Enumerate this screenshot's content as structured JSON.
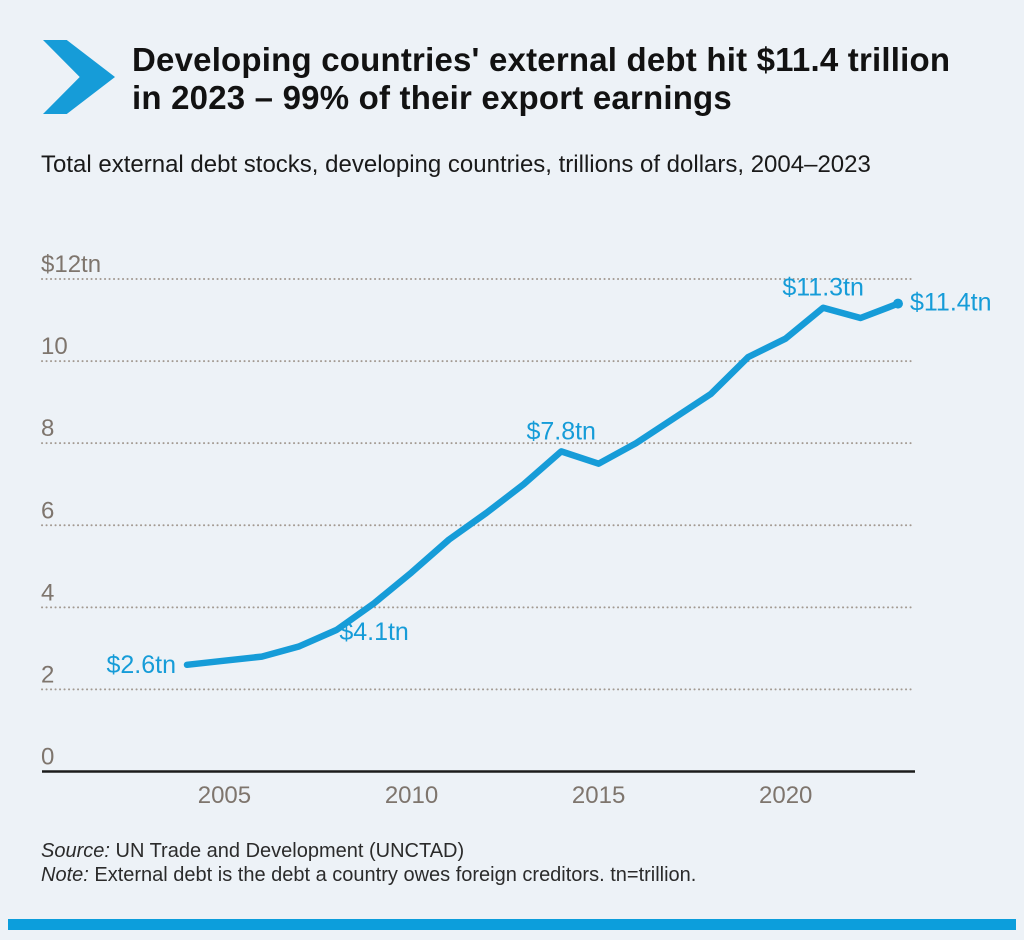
{
  "header": {
    "title": "Developing countries' external debt hit $11.4 trillion in 2023 – 99% of their export earnings",
    "subtitle": "Total external debt stocks, developing countries, trillions of dollars, 2004–2023"
  },
  "footer": {
    "source_label": "Source:",
    "source_text": "UN Trade and Development (UNCTAD)",
    "note_label": "Note:",
    "note_text": "External debt is the debt a country owes foreign creditors. tn=trillion."
  },
  "colors": {
    "accent": "#169cd8",
    "axis": "#1c1c1c",
    "grid": "#a39a92",
    "tick_text": "#7e756d"
  },
  "chart_data": {
    "type": "line",
    "title": "Total external debt stocks, developing countries, trillions of dollars, 2004–2023",
    "xlabel": "",
    "ylabel": "trillions of dollars",
    "xlim": [
      2004,
      2023
    ],
    "ylim": [
      0,
      12.6
    ],
    "grid": "horizontal-dotted",
    "legend": "none",
    "x": [
      2004,
      2005,
      2006,
      2007,
      2008,
      2009,
      2010,
      2011,
      2012,
      2013,
      2014,
      2015,
      2016,
      2017,
      2018,
      2019,
      2020,
      2021,
      2022,
      2023
    ],
    "series": [
      {
        "name": "Total external debt stocks ($tn)",
        "values": [
          2.6,
          2.7,
          2.8,
          3.05,
          3.45,
          4.1,
          4.85,
          5.65,
          6.3,
          7.0,
          7.8,
          7.5,
          8.0,
          8.6,
          9.2,
          10.1,
          10.55,
          11.3,
          11.05,
          11.4
        ]
      }
    ],
    "yticks": [
      {
        "v": 12,
        "label": "$12tn"
      },
      {
        "v": 10,
        "label": "10"
      },
      {
        "v": 8,
        "label": "8"
      },
      {
        "v": 6,
        "label": "6"
      },
      {
        "v": 4,
        "label": "4"
      },
      {
        "v": 2,
        "label": "2"
      },
      {
        "v": 0,
        "label": "0"
      }
    ],
    "xticks": [
      {
        "year": 2005,
        "label": "2005"
      },
      {
        "year": 2010,
        "label": "2010"
      },
      {
        "year": 2015,
        "label": "2015"
      },
      {
        "year": 2020,
        "label": "2020"
      }
    ],
    "annotations": [
      {
        "year": 2004,
        "value": 2.6,
        "label": "$2.6tn",
        "placement": "left"
      },
      {
        "year": 2009,
        "value": 4.1,
        "label": "$4.1tn",
        "placement": "below"
      },
      {
        "year": 2014,
        "value": 7.8,
        "label": "$7.8tn",
        "placement": "above"
      },
      {
        "year": 2021,
        "value": 11.3,
        "label": "$11.3tn",
        "placement": "above"
      },
      {
        "year": 2023,
        "value": 11.4,
        "label": "$11.4tn",
        "placement": "right"
      }
    ],
    "end_marker": {
      "year": 2023,
      "value": 11.4
    }
  }
}
